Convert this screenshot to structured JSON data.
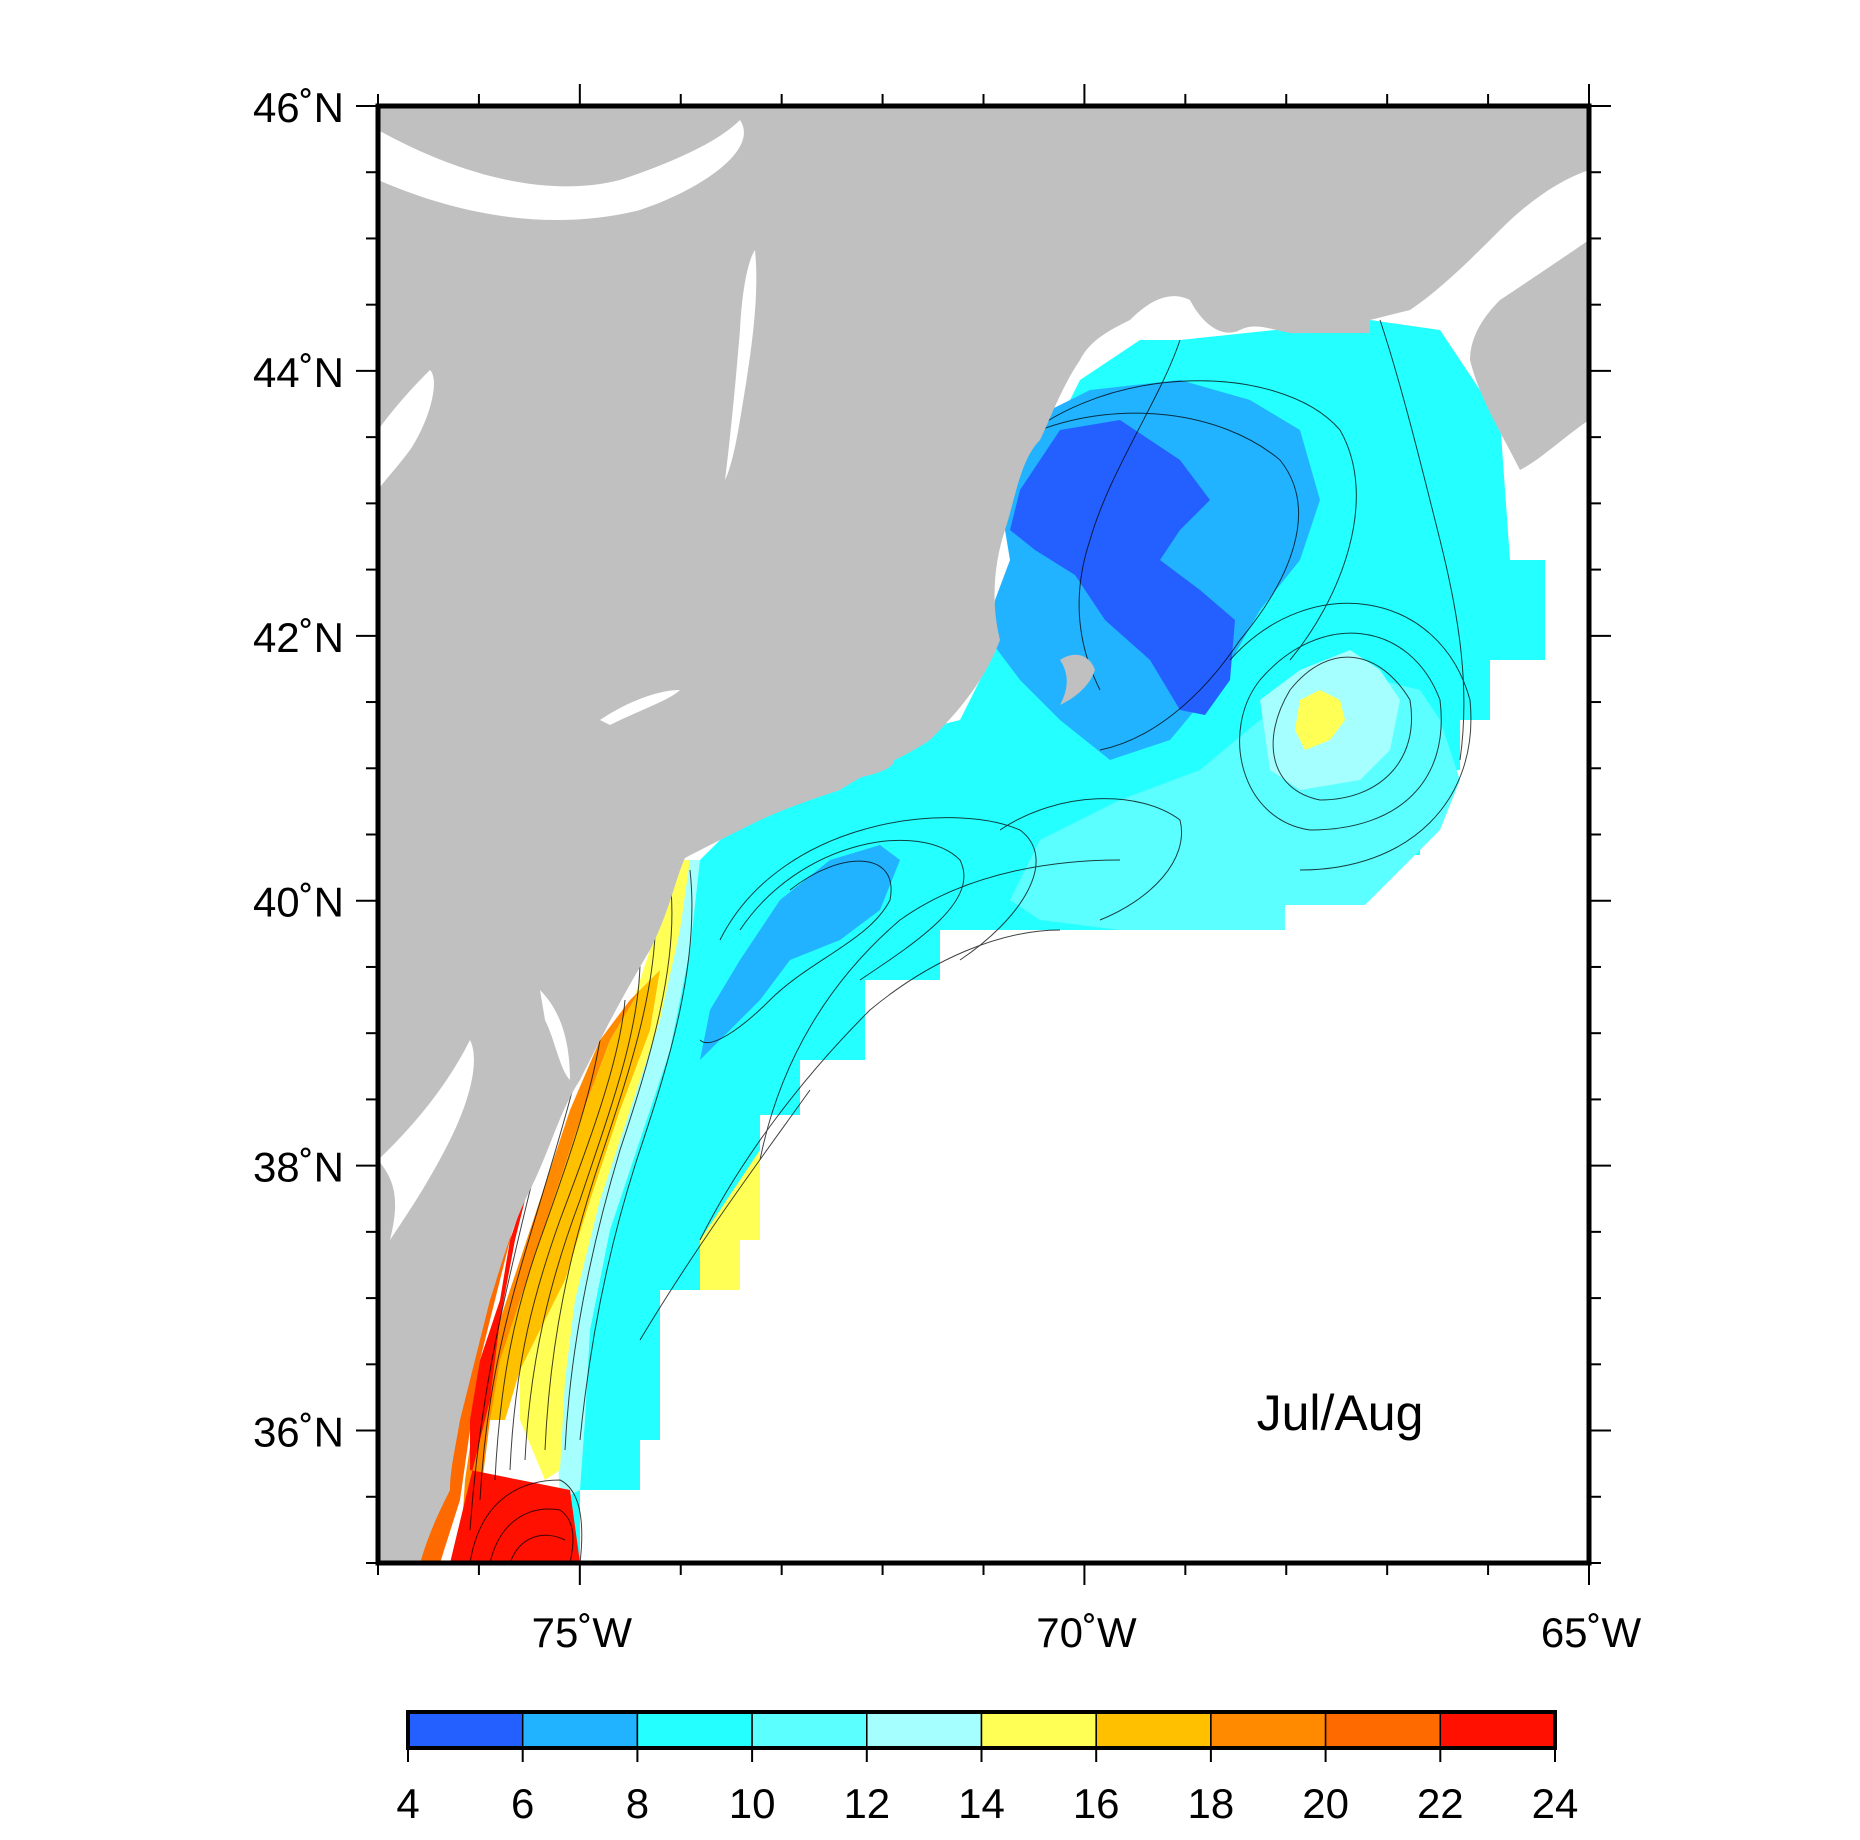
{
  "map": {
    "period_label": "Jul/Aug",
    "lon_range": [
      -77,
      -65
    ],
    "lat_range": [
      35,
      46
    ],
    "lat_ticks": [
      {
        "value": 46,
        "label": "46˚N"
      },
      {
        "value": 44,
        "label": "44˚N"
      },
      {
        "value": 42,
        "label": "42˚N"
      },
      {
        "value": 40,
        "label": "40˚N"
      },
      {
        "value": 38,
        "label": "38˚N"
      },
      {
        "value": 36,
        "label": "36˚N"
      }
    ],
    "lon_ticks": [
      {
        "value": -75,
        "label": "75˚W"
      },
      {
        "value": -70,
        "label": "70˚W"
      },
      {
        "value": -65,
        "label": "65˚W"
      }
    ],
    "land_color": "#c0c0c0",
    "water_blank_color": "#ffffff"
  },
  "colorbar": {
    "bins": [
      {
        "from": 4,
        "to": 6,
        "color": "#2460ff"
      },
      {
        "from": 6,
        "to": 8,
        "color": "#21b3ff"
      },
      {
        "from": 8,
        "to": 10,
        "color": "#24ffff"
      },
      {
        "from": 10,
        "to": 12,
        "color": "#5cffff"
      },
      {
        "from": 12,
        "to": 14,
        "color": "#a6ffff"
      },
      {
        "from": 14,
        "to": 16,
        "color": "#ffff56"
      },
      {
        "from": 16,
        "to": 18,
        "color": "#ffc000"
      },
      {
        "from": 18,
        "to": 20,
        "color": "#ff8a00"
      },
      {
        "from": 20,
        "to": 22,
        "color": "#ff6a00"
      },
      {
        "from": 22,
        "to": 24,
        "color": "#ff1000"
      }
    ],
    "tick_labels": [
      "4",
      "6",
      "8",
      "10",
      "12",
      "14",
      "16",
      "18",
      "20",
      "22",
      "24"
    ]
  }
}
